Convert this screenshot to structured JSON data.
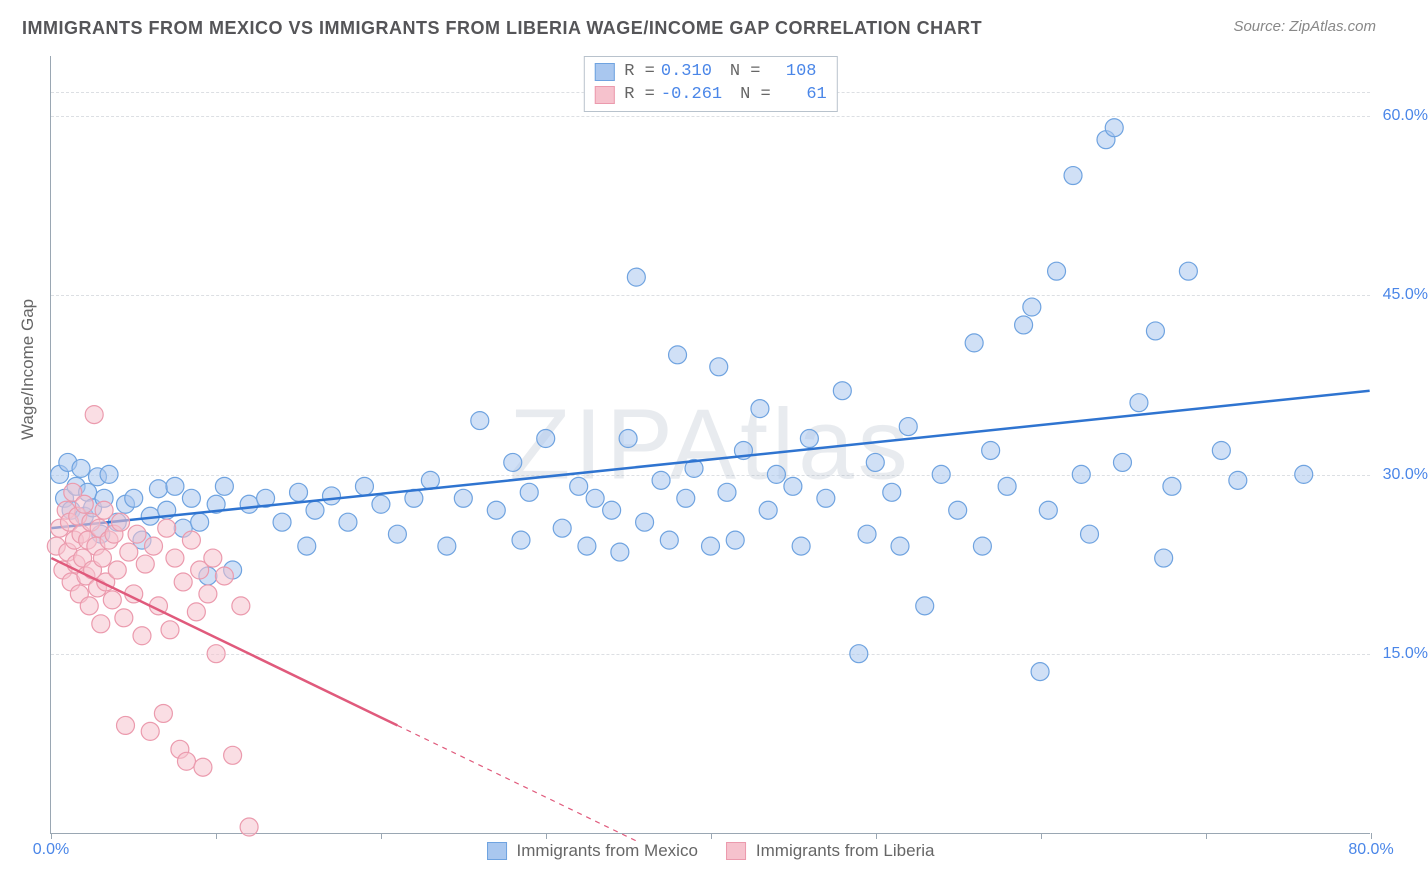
{
  "title": "IMMIGRANTS FROM MEXICO VS IMMIGRANTS FROM LIBERIA WAGE/INCOME GAP CORRELATION CHART",
  "source": "Source: ZipAtlas.com",
  "watermark": "ZIPAtlas",
  "ylabel": "Wage/Income Gap",
  "chart": {
    "type": "scatter",
    "xlim": [
      0,
      80
    ],
    "ylim": [
      0,
      65
    ],
    "x_ticks": [
      0,
      10,
      20,
      30,
      40,
      50,
      60,
      70,
      80
    ],
    "x_tick_labels": {
      "0": "0.0%",
      "80": "80.0%"
    },
    "y_ticks": [
      15,
      30,
      45,
      60
    ],
    "y_tick_labels": {
      "15": "15.0%",
      "30": "30.0%",
      "45": "45.0%",
      "60": "60.0%"
    },
    "gridline_color": "#dcdfe3",
    "axis_color": "#9aa7b3",
    "background_color": "#ffffff",
    "marker_radius": 9,
    "marker_opacity": 0.55,
    "trendline_width": 2.5
  },
  "series": [
    {
      "name": "Immigrants from Mexico",
      "color_fill": "#a9c7ef",
      "color_stroke": "#6fa3e0",
      "line_color": "#2f74d0",
      "R": "0.310",
      "N": "108",
      "trend": {
        "x1": 0,
        "y1": 25.5,
        "x2": 80,
        "y2": 37.0,
        "dashed_from": null
      },
      "points": [
        [
          0.5,
          30
        ],
        [
          0.8,
          28
        ],
        [
          1,
          31
        ],
        [
          1.2,
          27
        ],
        [
          1.5,
          29
        ],
        [
          1.8,
          30.5
        ],
        [
          2,
          26.5
        ],
        [
          2.2,
          28.5
        ],
        [
          2.5,
          27.2
        ],
        [
          2.8,
          29.8
        ],
        [
          3,
          25
        ],
        [
          3.2,
          28
        ],
        [
          3.5,
          30
        ],
        [
          4,
          26
        ],
        [
          4.5,
          27.5
        ],
        [
          5,
          28
        ],
        [
          5.5,
          24.5
        ],
        [
          6,
          26.5
        ],
        [
          6.5,
          28.8
        ],
        [
          7,
          27
        ],
        [
          7.5,
          29
        ],
        [
          8,
          25.5
        ],
        [
          8.5,
          28
        ],
        [
          9,
          26
        ],
        [
          9.5,
          21.5
        ],
        [
          10,
          27.5
        ],
        [
          10.5,
          29
        ],
        [
          11,
          22
        ],
        [
          12,
          27.5
        ],
        [
          13,
          28
        ],
        [
          14,
          26
        ],
        [
          15,
          28.5
        ],
        [
          15.5,
          24
        ],
        [
          16,
          27
        ],
        [
          17,
          28.2
        ],
        [
          18,
          26
        ],
        [
          19,
          29
        ],
        [
          20,
          27.5
        ],
        [
          21,
          25
        ],
        [
          22,
          28
        ],
        [
          23,
          29.5
        ],
        [
          24,
          24
        ],
        [
          25,
          28
        ],
        [
          26,
          34.5
        ],
        [
          27,
          27
        ],
        [
          28,
          31
        ],
        [
          28.5,
          24.5
        ],
        [
          29,
          28.5
        ],
        [
          30,
          33
        ],
        [
          31,
          25.5
        ],
        [
          32,
          29
        ],
        [
          32.5,
          24
        ],
        [
          33,
          28
        ],
        [
          34,
          27
        ],
        [
          34.5,
          23.5
        ],
        [
          35,
          33
        ],
        [
          35.5,
          46.5
        ],
        [
          36,
          26
        ],
        [
          37,
          29.5
        ],
        [
          37.5,
          24.5
        ],
        [
          38,
          40
        ],
        [
          38.5,
          28
        ],
        [
          39,
          30.5
        ],
        [
          40,
          24
        ],
        [
          40.5,
          39
        ],
        [
          41,
          28.5
        ],
        [
          41.5,
          24.5
        ],
        [
          42,
          32
        ],
        [
          43,
          35.5
        ],
        [
          43.5,
          27
        ],
        [
          44,
          30
        ],
        [
          45,
          29
        ],
        [
          45.5,
          24
        ],
        [
          46,
          33
        ],
        [
          47,
          28
        ],
        [
          48,
          37
        ],
        [
          49,
          15
        ],
        [
          49.5,
          25
        ],
        [
          50,
          31
        ],
        [
          51,
          28.5
        ],
        [
          51.5,
          24
        ],
        [
          52,
          34
        ],
        [
          53,
          19
        ],
        [
          54,
          30
        ],
        [
          55,
          27
        ],
        [
          56,
          41
        ],
        [
          56.5,
          24
        ],
        [
          57,
          32
        ],
        [
          58,
          29
        ],
        [
          59,
          42.5
        ],
        [
          59.5,
          44
        ],
        [
          60,
          13.5
        ],
        [
          60.5,
          27
        ],
        [
          61,
          47
        ],
        [
          62,
          55
        ],
        [
          62.5,
          30
        ],
        [
          63,
          25
        ],
        [
          64,
          58
        ],
        [
          64.5,
          59
        ],
        [
          65,
          31
        ],
        [
          66,
          36
        ],
        [
          67,
          42
        ],
        [
          67.5,
          23
        ],
        [
          68,
          29
        ],
        [
          69,
          47
        ],
        [
          71,
          32
        ],
        [
          72,
          29.5
        ],
        [
          76,
          30
        ]
      ]
    },
    {
      "name": "Immigrants from Liberia",
      "color_fill": "#f6c2cd",
      "color_stroke": "#eb9aad",
      "line_color": "#e05a7c",
      "R": "-0.261",
      "N": "61",
      "trend": {
        "x1": 0,
        "y1": 23.0,
        "x2": 36,
        "y2": -1.0,
        "dashed_from": 21
      },
      "points": [
        [
          0.3,
          24
        ],
        [
          0.5,
          25.5
        ],
        [
          0.7,
          22
        ],
        [
          0.9,
          27
        ],
        [
          1,
          23.5
        ],
        [
          1.1,
          26
        ],
        [
          1.2,
          21
        ],
        [
          1.3,
          28.5
        ],
        [
          1.4,
          24.5
        ],
        [
          1.5,
          22.5
        ],
        [
          1.6,
          26.5
        ],
        [
          1.7,
          20
        ],
        [
          1.8,
          25
        ],
        [
          1.9,
          23
        ],
        [
          2,
          27.5
        ],
        [
          2.1,
          21.5
        ],
        [
          2.2,
          24.5
        ],
        [
          2.3,
          19
        ],
        [
          2.4,
          26
        ],
        [
          2.5,
          22
        ],
        [
          2.6,
          35
        ],
        [
          2.7,
          24
        ],
        [
          2.8,
          20.5
        ],
        [
          2.9,
          25.5
        ],
        [
          3,
          17.5
        ],
        [
          3.1,
          23
        ],
        [
          3.2,
          27
        ],
        [
          3.3,
          21
        ],
        [
          3.5,
          24.5
        ],
        [
          3.7,
          19.5
        ],
        [
          3.8,
          25
        ],
        [
          4,
          22
        ],
        [
          4.2,
          26
        ],
        [
          4.4,
          18
        ],
        [
          4.5,
          9
        ],
        [
          4.7,
          23.5
        ],
        [
          5,
          20
        ],
        [
          5.2,
          25
        ],
        [
          5.5,
          16.5
        ],
        [
          5.7,
          22.5
        ],
        [
          6,
          8.5
        ],
        [
          6.2,
          24
        ],
        [
          6.5,
          19
        ],
        [
          6.8,
          10
        ],
        [
          7,
          25.5
        ],
        [
          7.2,
          17
        ],
        [
          7.5,
          23
        ],
        [
          7.8,
          7
        ],
        [
          8,
          21
        ],
        [
          8.2,
          6
        ],
        [
          8.5,
          24.5
        ],
        [
          8.8,
          18.5
        ],
        [
          9,
          22
        ],
        [
          9.2,
          5.5
        ],
        [
          9.5,
          20
        ],
        [
          9.8,
          23
        ],
        [
          10,
          15
        ],
        [
          10.5,
          21.5
        ],
        [
          11,
          6.5
        ],
        [
          11.5,
          19
        ],
        [
          12,
          0.5
        ]
      ]
    }
  ],
  "legend_bottom": [
    {
      "name": "Immigrants from Mexico",
      "fill": "#a9c7ef",
      "stroke": "#6fa3e0"
    },
    {
      "name": "Immigrants from Liberia",
      "fill": "#f6c2cd",
      "stroke": "#eb9aad"
    }
  ]
}
